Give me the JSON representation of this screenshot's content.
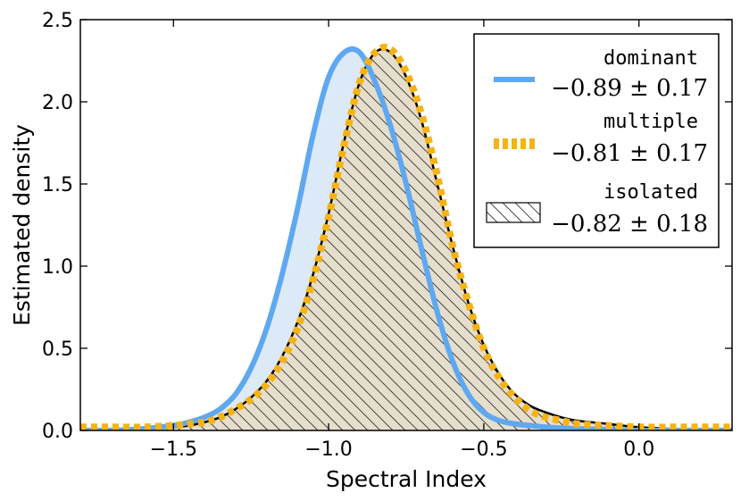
{
  "chart_data": {
    "type": "area",
    "title": "",
    "xlabel": "Spectral Index",
    "ylabel": "Estimated density",
    "xlim": [
      -1.8,
      0.3
    ],
    "ylim": [
      0,
      2.5
    ],
    "xticks": [
      -1.5,
      -1.0,
      -0.5,
      0.0
    ],
    "xtick_labels": [
      "−1.5",
      "−1.0",
      "−0.5",
      "0.0"
    ],
    "yticks": [
      0.0,
      0.5,
      1.0,
      1.5,
      2.0,
      2.5
    ],
    "ytick_labels": [
      "0.0",
      "0.5",
      "1.0",
      "1.5",
      "2.0",
      "2.5"
    ],
    "grid": false,
    "legend_position": "top-right",
    "x": [
      -1.8,
      -1.7,
      -1.6,
      -1.5,
      -1.45,
      -1.4,
      -1.35,
      -1.3,
      -1.25,
      -1.2,
      -1.15,
      -1.1,
      -1.05,
      -1.0,
      -0.95,
      -0.9,
      -0.85,
      -0.8,
      -0.75,
      -0.7,
      -0.65,
      -0.6,
      -0.55,
      -0.5,
      -0.45,
      -0.4,
      -0.35,
      -0.3,
      -0.25,
      -0.2,
      -0.1,
      0.0,
      0.1,
      0.2,
      0.3
    ],
    "series": [
      {
        "name": "dominant",
        "stat": "−0.89 ± 0.17",
        "style": "solid",
        "color": "#5ea8f0",
        "fill": "#dce9f7",
        "values": [
          0.0,
          0.0,
          0.01,
          0.03,
          0.05,
          0.08,
          0.13,
          0.22,
          0.38,
          0.62,
          0.95,
          1.35,
          1.8,
          2.15,
          2.3,
          2.3,
          2.12,
          1.85,
          1.5,
          1.1,
          0.72,
          0.42,
          0.22,
          0.11,
          0.06,
          0.04,
          0.03,
          0.02,
          0.015,
          0.01,
          0.005,
          0.0,
          0.0,
          0.0,
          0.0
        ]
      },
      {
        "name": "multiple",
        "stat": "−0.81 ± 0.17",
        "style": "dotted",
        "color": "#f5b315",
        "fill": "#fff0cf",
        "values": [
          0.02,
          0.02,
          0.02,
          0.03,
          0.04,
          0.05,
          0.08,
          0.13,
          0.19,
          0.28,
          0.42,
          0.62,
          0.92,
          1.3,
          1.74,
          2.12,
          2.3,
          2.32,
          2.18,
          1.92,
          1.55,
          1.12,
          0.78,
          0.5,
          0.32,
          0.2,
          0.12,
          0.08,
          0.06,
          0.04,
          0.03,
          0.02,
          0.02,
          0.02,
          0.02
        ]
      },
      {
        "name": "isolated",
        "stat": "−0.82 ± 0.18",
        "style": "hatched",
        "color": "#000000",
        "fill": "#e3dccb",
        "values": [
          0.0,
          0.0,
          0.01,
          0.02,
          0.03,
          0.05,
          0.08,
          0.13,
          0.2,
          0.3,
          0.45,
          0.66,
          0.95,
          1.32,
          1.76,
          2.12,
          2.3,
          2.3,
          2.15,
          1.88,
          1.5,
          1.12,
          0.78,
          0.52,
          0.34,
          0.22,
          0.15,
          0.11,
          0.08,
          0.06,
          0.04,
          0.02,
          0.01,
          0.0,
          0.0
        ]
      }
    ]
  }
}
